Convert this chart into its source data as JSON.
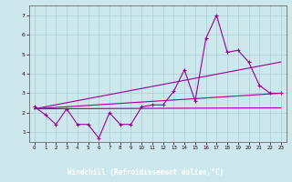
{
  "xlabel": "Windchill (Refroidissement éolien,°C)",
  "bg_color": "#cce8ec",
  "grid_color": "#aaccd4",
  "line_color": "#990099",
  "xlabel_bg": "#6633aa",
  "xlabel_fg": "#ffffff",
  "xlim": [
    -0.5,
    23.5
  ],
  "ylim": [
    0.5,
    7.5
  ],
  "yticks": [
    1,
    2,
    3,
    4,
    5,
    6,
    7
  ],
  "xticks": [
    0,
    1,
    2,
    3,
    4,
    5,
    6,
    7,
    8,
    9,
    10,
    11,
    12,
    13,
    14,
    15,
    16,
    17,
    18,
    19,
    20,
    21,
    22,
    23
  ],
  "main_x": [
    0,
    1,
    2,
    3,
    4,
    5,
    6,
    7,
    8,
    9,
    10,
    11,
    12,
    13,
    14,
    15,
    16,
    17,
    18,
    19,
    20,
    21,
    22,
    23
  ],
  "main_y": [
    2.3,
    1.9,
    1.4,
    2.2,
    1.4,
    1.4,
    0.7,
    2.0,
    1.4,
    1.4,
    2.3,
    2.4,
    2.4,
    3.1,
    4.2,
    2.6,
    5.8,
    7.0,
    5.1,
    5.2,
    4.6,
    3.4,
    3.0,
    3.0
  ],
  "trend1_x": [
    0,
    23
  ],
  "trend1_y": [
    2.2,
    3.0
  ],
  "trend2_x": [
    0,
    23
  ],
  "trend2_y": [
    2.2,
    4.6
  ],
  "trend3_x": [
    0,
    23
  ],
  "trend3_y": [
    2.2,
    2.25
  ]
}
